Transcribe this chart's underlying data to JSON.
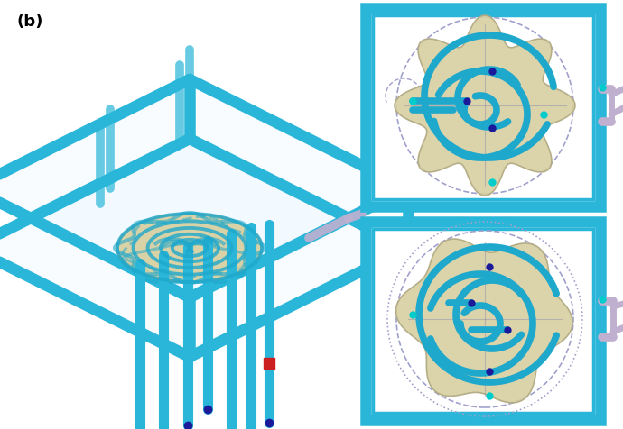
{
  "background_color": "#ffffff",
  "label_text": "(b)",
  "label_fontsize": 13,
  "label_fontweight": "bold",
  "tube_color": "#29B6D8",
  "tube_color2": "#1EA8CC",
  "mold_color": "#D8CFA0",
  "mold_edge": "#B0A880",
  "channel_color": "#1EA8CC",
  "connector_color": "#BBAACC",
  "dark_blue": "#1A1A9A",
  "teal_cap": "#008080",
  "red_accent": "#CC2020",
  "lavender": "#C0B0D0",
  "panel_bg": "#ffffff",
  "panel_border": "#29B6D8",
  "dashed_circle_color": "#A0A0CC"
}
